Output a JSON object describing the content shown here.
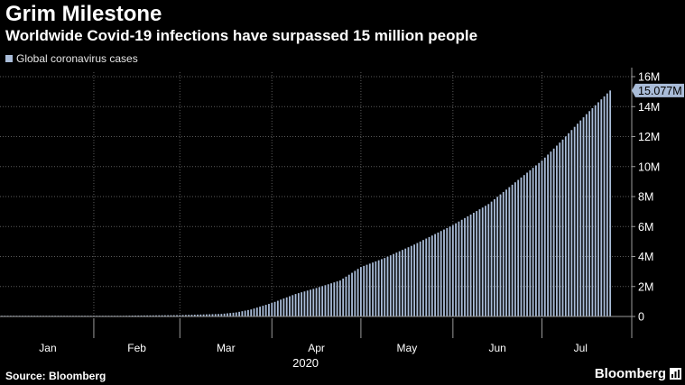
{
  "title": "Grim Milestone",
  "subtitle": "Worldwide Covid-19 infections have surpassed 15 million people",
  "footer": {
    "source": "Source: Bloomberg",
    "brand": "Bloomberg"
  },
  "colors": {
    "background": "#000000",
    "bar": "#a9bcd8",
    "grid": "#5a5a5a",
    "label_bg": "#a9bcd8"
  },
  "chart_data": {
    "type": "bar",
    "series_name": "Global coronavirus cases",
    "legend_position": "top-left",
    "last_value_label": "15.077M",
    "year_label": "2020",
    "y_axis": {
      "min": 0,
      "max": 16000000,
      "side": "right",
      "ticks": [
        0,
        2000000,
        4000000,
        6000000,
        8000000,
        10000000,
        12000000,
        14000000,
        16000000
      ],
      "tick_labels": [
        "0",
        "2M",
        "4M",
        "6M",
        "8M",
        "10M",
        "12M",
        "14M",
        "16M"
      ]
    },
    "x_axis": {
      "months": [
        "Jan",
        "Feb",
        "Mar",
        "Apr",
        "May",
        "Jun",
        "Jul"
      ],
      "month_start_days": [
        1,
        32,
        61,
        92,
        122,
        153,
        183
      ],
      "first_day": 1,
      "last_day": 206,
      "axis_end_day": 209
    },
    "cumulative_cases_millions": {
      "day_of_year": [
        1,
        22,
        32,
        45,
        61,
        75,
        80,
        85,
        92,
        100,
        107,
        115,
        122,
        130,
        140,
        153,
        165,
        183,
        190,
        198,
        206
      ],
      "value": [
        0,
        0.0006,
        0.012,
        0.06,
        0.09,
        0.17,
        0.27,
        0.47,
        0.9,
        1.5,
        1.9,
        2.4,
        3.3,
        3.9,
        4.8,
        6.1,
        7.5,
        10.4,
        11.8,
        13.5,
        15.077
      ]
    }
  }
}
